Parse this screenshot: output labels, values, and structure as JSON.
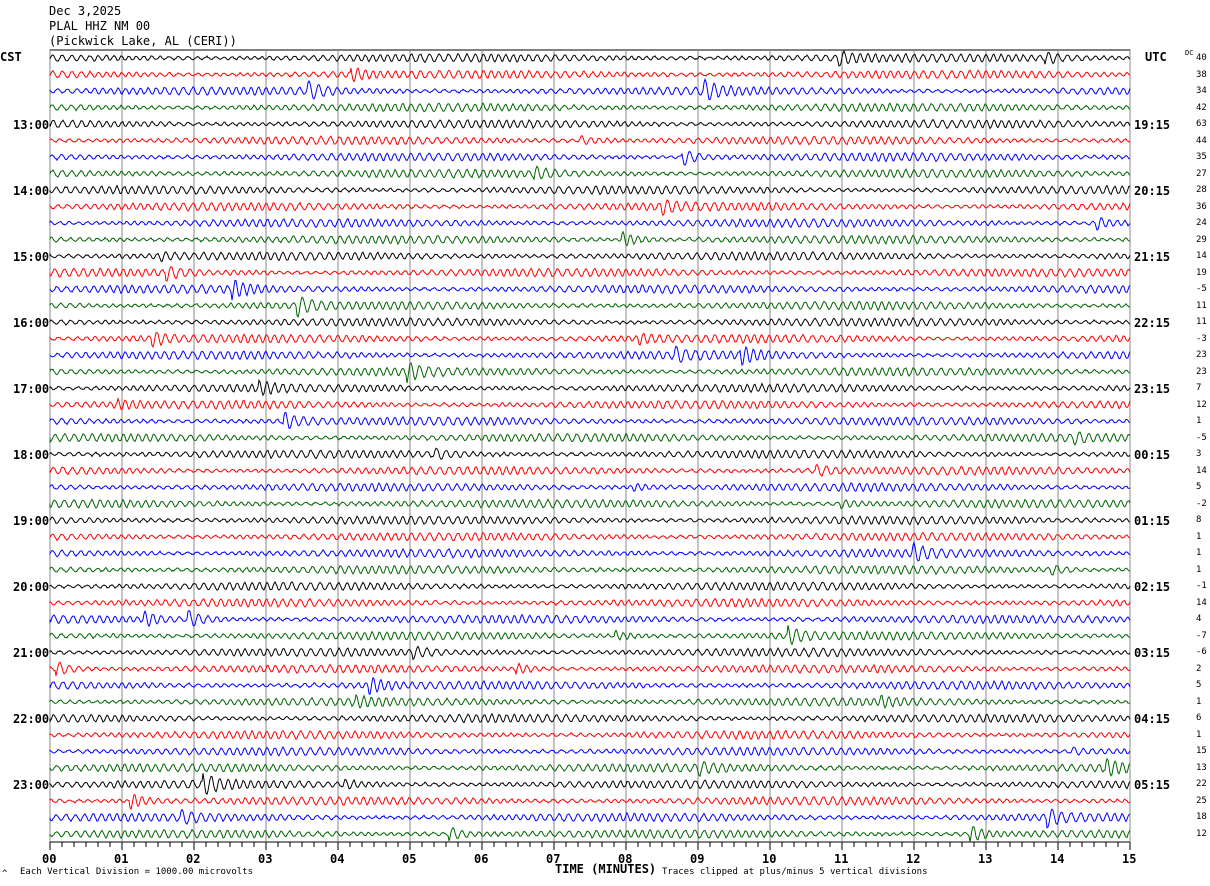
{
  "header": {
    "date": "Dec 3,2025",
    "station": "PLAL HHZ NM 00",
    "location": "(Pickwick Lake, AL (CERI))"
  },
  "left_axis_label": "CST",
  "right_axis_label": "UTC",
  "dc_label": "DC",
  "chart_data": {
    "type": "line",
    "title": "PLAL HHZ NM 00 helicorder",
    "xlabel": "TIME (MINUTES)",
    "xlim": [
      0,
      15
    ],
    "x_ticks": [
      "00",
      "01",
      "02",
      "03",
      "04",
      "05",
      "06",
      "07",
      "08",
      "09",
      "10",
      "11",
      "12",
      "13",
      "14",
      "15"
    ],
    "rows_per_hour": 4,
    "row_count": 48,
    "trace_colors": [
      "#000000",
      "#ff0000",
      "#0000ff",
      "#006400"
    ],
    "cst_labels": [
      "13:00",
      "14:00",
      "15:00",
      "16:00",
      "17:00",
      "18:00",
      "19:00",
      "20:00",
      "21:00",
      "22:00",
      "23:00"
    ],
    "utc_labels": [
      "19:15",
      "20:15",
      "21:15",
      "22:15",
      "23:15",
      "00:15",
      "01:15",
      "02:15",
      "03:15",
      "04:15",
      "05:15"
    ],
    "dc_offsets": [
      40,
      38,
      34,
      42,
      63,
      44,
      35,
      27,
      28,
      36,
      24,
      29,
      14,
      19,
      -5,
      11,
      11,
      -3,
      23,
      23,
      7,
      12,
      1,
      -5,
      3,
      14,
      5,
      -2,
      8,
      1,
      1,
      1,
      -1,
      14,
      4,
      -7,
      -6,
      2,
      5,
      1,
      6,
      1,
      15,
      13,
      22,
      25,
      18,
      12
    ]
  },
  "footer": {
    "scale": "Each Vertical Division = 1000.00 microvolts",
    "clip": "Traces clipped at plus/minus 5 vertical divisions",
    "mark": "^"
  }
}
